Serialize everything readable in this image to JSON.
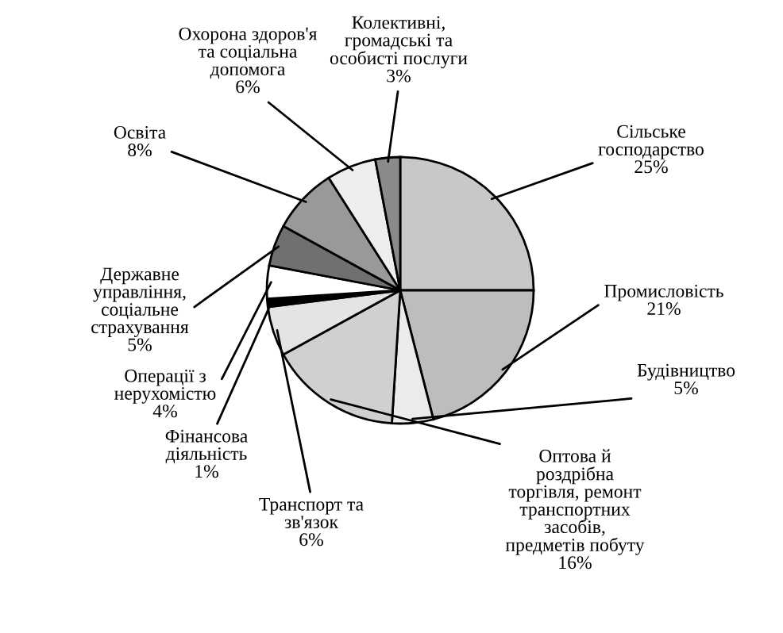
{
  "chart_data": {
    "type": "pie",
    "categories": [
      "Сільське\nгосподарство",
      "Промисловість",
      "Будівництво",
      "Оптова й\nроздрібна\nторгівля, ремонт\nтранспортних\nзасобів,\nпредметів побуту",
      "Транспорт та\nзв'язок",
      "Фінансова\nдіяльність",
      "Операції з\nнерухомістю",
      "Державне\nуправління,\nсоціальне\nстрахування",
      "Освіта",
      "Охорона здоров'я\nта соціальна\nдопомога",
      "Колективні,\nгромадські та\nособисті послуги"
    ],
    "values": [
      25,
      21,
      5,
      16,
      6,
      1,
      4,
      5,
      8,
      6,
      3
    ],
    "value_labels": [
      "25%",
      "21%",
      "5%",
      "16%",
      "6%",
      "1%",
      "4%",
      "5%",
      "8%",
      "6%",
      "3%"
    ],
    "colors": [
      "#c8c8c8",
      "#bdbdbd",
      "#ebebeb",
      "#d0d0d0",
      "#e4e4e4",
      "#000000",
      "#ffffff",
      "#707070",
      "#999999",
      "#eeeeee",
      "#8a8a8a"
    ],
    "legend": false
  }
}
